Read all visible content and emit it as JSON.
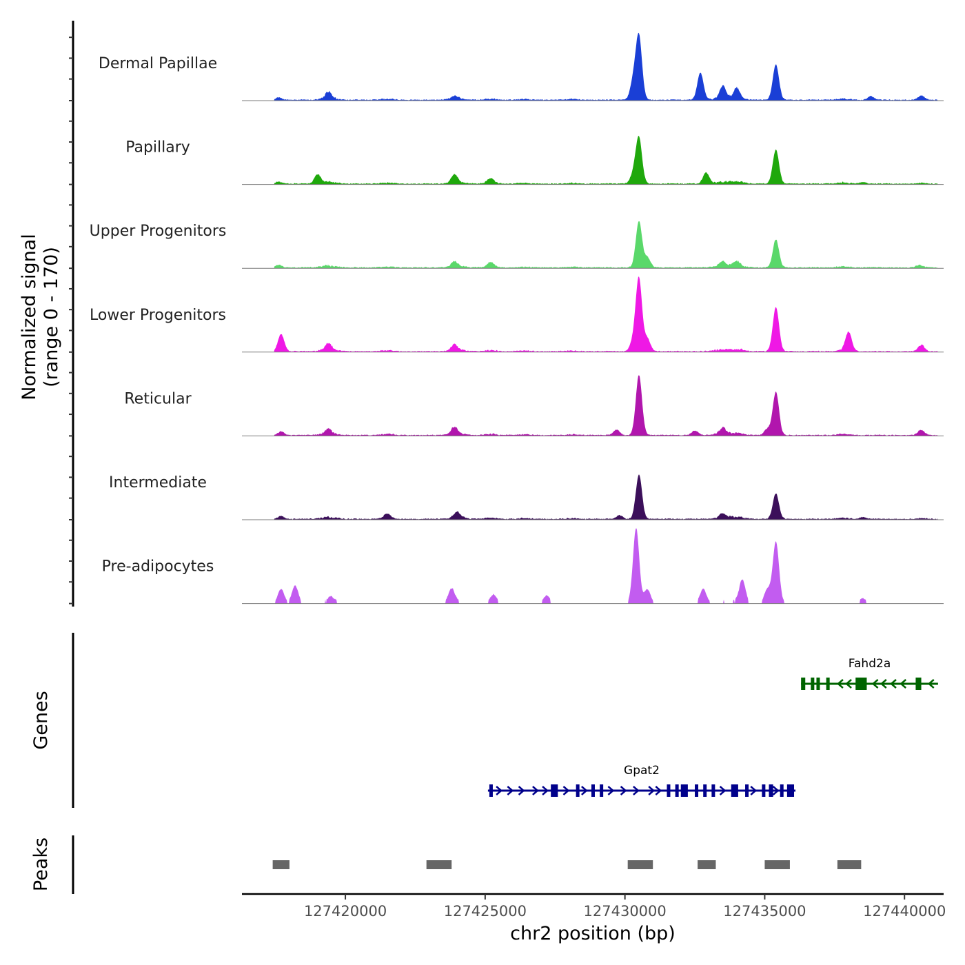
{
  "chart_data": {
    "type": "area",
    "chromosome": "chr2",
    "xlabel": "chr2 position (bp)",
    "xlim": [
      127416300,
      127441400
    ],
    "x_ticks": [
      127420000,
      127425000,
      127430000,
      127435000,
      127440000
    ],
    "x_tick_labels": [
      "127420000",
      "127425000",
      "127430000",
      "127435000",
      "127440000"
    ],
    "ylabel_line1": "Normalized signal",
    "ylabel_line2": "(range 0 - 170)",
    "ylim": [
      0,
      170
    ],
    "signal_extent": [
      127417450,
      127441180
    ],
    "background_peaks": [
      {
        "center": 127419400,
        "width": 250,
        "height": 0.35
      },
      {
        "center": 127421500,
        "width": 200,
        "height": 0.2
      },
      {
        "center": 127424000,
        "width": 250,
        "height": 0.3
      },
      {
        "center": 127425200,
        "width": 200,
        "height": 0.2
      },
      {
        "center": 127426400,
        "width": 180,
        "height": 0.15
      },
      {
        "center": 127428100,
        "width": 180,
        "height": 0.15
      },
      {
        "center": 127433500,
        "width": 300,
        "height": 0.3
      },
      {
        "center": 127434000,
        "width": 250,
        "height": 0.3
      },
      {
        "center": 127437800,
        "width": 200,
        "height": 0.2
      },
      {
        "center": 127440600,
        "width": 150,
        "height": 0.15
      }
    ],
    "series": [
      {
        "name": "Dermal Papillae",
        "color": "#1a3fd6",
        "peaks": [
          {
            "x": 127417600,
            "height": 5
          },
          {
            "x": 127419400,
            "height": 14
          },
          {
            "x": 127423900,
            "height": 6
          },
          {
            "x": 127430300,
            "height": 40
          },
          {
            "x": 127430500,
            "height": 140
          },
          {
            "x": 127432700,
            "height": 60
          },
          {
            "x": 127433500,
            "height": 28
          },
          {
            "x": 127434000,
            "height": 22
          },
          {
            "x": 127435400,
            "height": 78
          },
          {
            "x": 127438800,
            "height": 8
          },
          {
            "x": 127440600,
            "height": 8
          }
        ]
      },
      {
        "name": "Papillary",
        "color": "#1fa80c",
        "peaks": [
          {
            "x": 127417600,
            "height": 4
          },
          {
            "x": 127419000,
            "height": 20
          },
          {
            "x": 127423900,
            "height": 18
          },
          {
            "x": 127425200,
            "height": 10
          },
          {
            "x": 127430300,
            "height": 20
          },
          {
            "x": 127430500,
            "height": 102
          },
          {
            "x": 127432900,
            "height": 24
          },
          {
            "x": 127435400,
            "height": 75
          },
          {
            "x": 127438500,
            "height": 4
          }
        ]
      },
      {
        "name": "Upper Progenitors",
        "color": "#5ad86a",
        "peaks": [
          {
            "x": 127417600,
            "height": 6
          },
          {
            "x": 127423900,
            "height": 10
          },
          {
            "x": 127425200,
            "height": 10
          },
          {
            "x": 127430500,
            "height": 102
          },
          {
            "x": 127430800,
            "height": 22
          },
          {
            "x": 127433500,
            "height": 10
          },
          {
            "x": 127434000,
            "height": 10
          },
          {
            "x": 127435400,
            "height": 62
          },
          {
            "x": 127440500,
            "height": 4
          }
        ]
      },
      {
        "name": "Lower Progenitors",
        "color": "#ef18e5",
        "peaks": [
          {
            "x": 127417700,
            "height": 38
          },
          {
            "x": 127419400,
            "height": 14
          },
          {
            "x": 127423900,
            "height": 12
          },
          {
            "x": 127430300,
            "height": 22
          },
          {
            "x": 127430500,
            "height": 160
          },
          {
            "x": 127430800,
            "height": 28
          },
          {
            "x": 127435400,
            "height": 98
          },
          {
            "x": 127438000,
            "height": 42
          },
          {
            "x": 127440600,
            "height": 12
          }
        ]
      },
      {
        "name": "Reticular",
        "color": "#b116ad",
        "peaks": [
          {
            "x": 127417700,
            "height": 8
          },
          {
            "x": 127419400,
            "height": 10
          },
          {
            "x": 127423900,
            "height": 16
          },
          {
            "x": 127429700,
            "height": 12
          },
          {
            "x": 127430500,
            "height": 132
          },
          {
            "x": 127432500,
            "height": 10
          },
          {
            "x": 127433500,
            "height": 12
          },
          {
            "x": 127435100,
            "height": 14
          },
          {
            "x": 127435400,
            "height": 95
          },
          {
            "x": 127440600,
            "height": 10
          }
        ]
      },
      {
        "name": "Intermediate",
        "color": "#3b0f5a",
        "peaks": [
          {
            "x": 127417700,
            "height": 6
          },
          {
            "x": 127421500,
            "height": 10
          },
          {
            "x": 127424000,
            "height": 12
          },
          {
            "x": 127429800,
            "height": 8
          },
          {
            "x": 127430500,
            "height": 98
          },
          {
            "x": 127433500,
            "height": 8
          },
          {
            "x": 127435400,
            "height": 56
          },
          {
            "x": 127438500,
            "height": 4
          }
        ]
      },
      {
        "name": "Pre-adipocytes",
        "color": "#c25cf0",
        "peaks": [
          {
            "x": 127417700,
            "height": 30
          },
          {
            "x": 127418200,
            "height": 38
          },
          {
            "x": 127419500,
            "height": 10
          },
          {
            "x": 127423800,
            "height": 30
          },
          {
            "x": 127425300,
            "height": 16
          },
          {
            "x": 127427200,
            "height": 16
          },
          {
            "x": 127430400,
            "height": 165
          },
          {
            "x": 127430800,
            "height": 30
          },
          {
            "x": 127432800,
            "height": 30
          },
          {
            "x": 127434200,
            "height": 48
          },
          {
            "x": 127435100,
            "height": 30
          },
          {
            "x": 127435400,
            "height": 135
          },
          {
            "x": 127438500,
            "height": 10
          }
        ]
      }
    ],
    "genes": [
      {
        "name": "Fahd2a",
        "strand": "-",
        "color": "#006400",
        "start": 127436300,
        "end": 127441200,
        "exons": [
          [
            127436300,
            127436450
          ],
          [
            127436650,
            127436750
          ],
          [
            127436850,
            127436950
          ],
          [
            127437200,
            127437250
          ],
          [
            127438250,
            127438650
          ],
          [
            127440400,
            127440600
          ]
        ],
        "arrows": [
          127437700,
          127438000,
          127438950,
          127439250,
          127439600,
          127439950,
          127440950
        ]
      },
      {
        "name": "Gpat2",
        "strand": "+",
        "color": "#00008b",
        "start": 127425100,
        "end": 127436100,
        "exons": [
          [
            127425150,
            127425200
          ],
          [
            127427350,
            127427600
          ],
          [
            127428250,
            127428300
          ],
          [
            127428800,
            127428850
          ],
          [
            127429100,
            127429200
          ],
          [
            127431500,
            127431600
          ],
          [
            127431800,
            127431850
          ],
          [
            127432000,
            127432250
          ],
          [
            127432500,
            127432550
          ],
          [
            127432800,
            127432850
          ],
          [
            127433100,
            127433200
          ],
          [
            127433800,
            127434050
          ],
          [
            127434300,
            127434400
          ],
          [
            127434900,
            127435000
          ],
          [
            127435150,
            127435300
          ],
          [
            127435550,
            127435600
          ],
          [
            127435800,
            127436050
          ]
        ],
        "arrows": [
          127425500,
          127425900,
          127426300,
          127426800,
          127427150,
          127427900,
          127428550,
          127429500,
          127429950,
          127430400,
          127430950,
          127431200,
          127433500,
          127434600,
          127435400
        ]
      }
    ],
    "peak_regions": [
      [
        127417400,
        127418000
      ],
      [
        127422900,
        127423800
      ],
      [
        127430100,
        127431000
      ],
      [
        127432600,
        127433250
      ],
      [
        127435000,
        127435900
      ],
      [
        127437600,
        127438450
      ]
    ],
    "panel_titles": {
      "genes": "Genes",
      "peaks": "Peaks"
    }
  }
}
